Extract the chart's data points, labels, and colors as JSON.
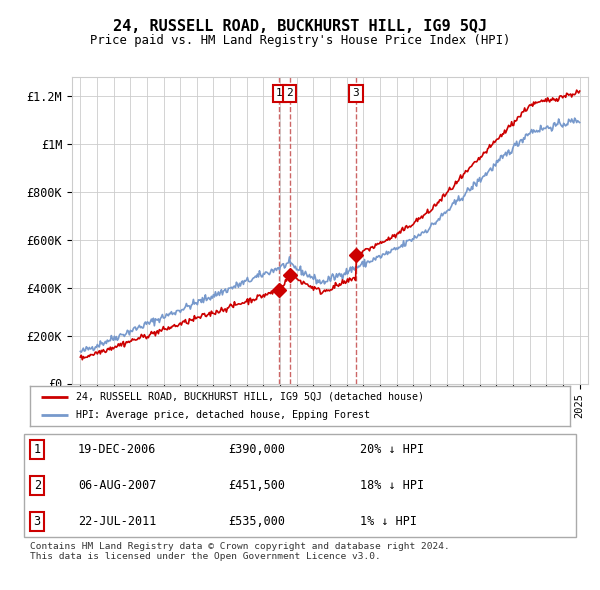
{
  "title": "24, RUSSELL ROAD, BUCKHURST HILL, IG9 5QJ",
  "subtitle": "Price paid vs. HM Land Registry's House Price Index (HPI)",
  "ylabel_ticks": [
    "£0",
    "£200K",
    "£400K",
    "£600K",
    "£800K",
    "£1M",
    "£1.2M"
  ],
  "ytick_values": [
    0,
    200000,
    400000,
    600000,
    800000,
    1000000,
    1200000
  ],
  "ylim": [
    0,
    1280000
  ],
  "xlim_start": 1994.5,
  "xlim_end": 2025.5,
  "sales": [
    {
      "date": 2006.96,
      "price": 390000,
      "label": "1"
    },
    {
      "date": 2007.58,
      "price": 451500,
      "label": "2"
    },
    {
      "date": 2011.55,
      "price": 535000,
      "label": "3"
    }
  ],
  "sale_vlines": [
    2006.96,
    2007.58,
    2011.55
  ],
  "legend_entries": [
    {
      "label": "24, RUSSELL ROAD, BUCKHURST HILL, IG9 5QJ (detached house)",
      "color": "#cc0000"
    },
    {
      "label": "HPI: Average price, detached house, Epping Forest",
      "color": "#7799cc"
    }
  ],
  "table_rows": [
    {
      "num": "1",
      "date": "19-DEC-2006",
      "price": "£390,000",
      "hpi": "20% ↓ HPI"
    },
    {
      "num": "2",
      "date": "06-AUG-2007",
      "price": "£451,500",
      "hpi": "18% ↓ HPI"
    },
    {
      "num": "3",
      "date": "22-JUL-2011",
      "price": "£535,000",
      "hpi": "1% ↓ HPI"
    }
  ],
  "footer": "Contains HM Land Registry data © Crown copyright and database right 2024.\nThis data is licensed under the Open Government Licence v3.0.",
  "bg_color": "#ffffff",
  "grid_color": "#cccccc",
  "hpi_color": "#7799cc",
  "price_color": "#cc0000",
  "sale_marker_color": "#cc0000",
  "vline_color": "#cc6666"
}
